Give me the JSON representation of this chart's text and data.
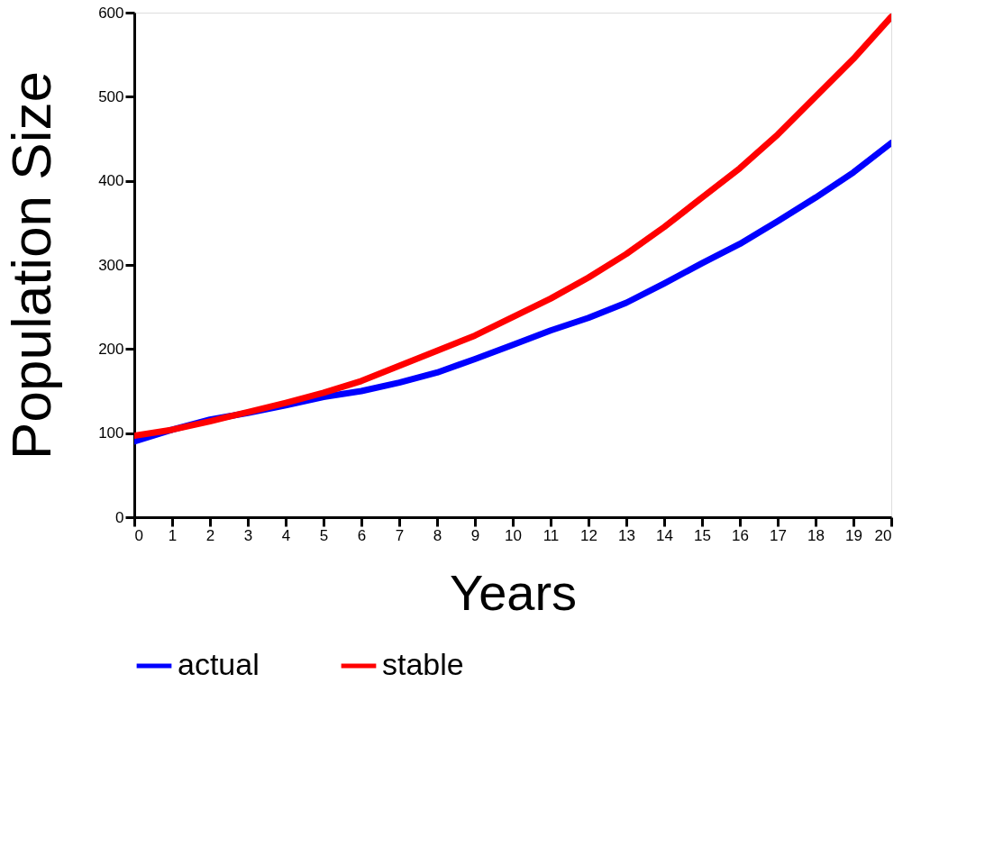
{
  "chart_data": {
    "type": "line",
    "xlabel": "Years",
    "ylabel": "Population Size",
    "x": [
      0,
      1,
      2,
      3,
      4,
      5,
      6,
      7,
      8,
      9,
      10,
      11,
      12,
      13,
      14,
      15,
      16,
      17,
      18,
      19,
      20
    ],
    "series": [
      {
        "name": "actual",
        "color": "#0000ff",
        "values": [
          90,
          104,
          116,
          124,
          133,
          143,
          150,
          160,
          172,
          188,
          205,
          222,
          237,
          255,
          278,
          302,
          325,
          352,
          380,
          410,
          445
        ]
      },
      {
        "name": "stable",
        "color": "#ff0000",
        "values": [
          97,
          104,
          114,
          125,
          136,
          148,
          162,
          180,
          198,
          216,
          238,
          260,
          285,
          313,
          345,
          380,
          415,
          455,
          500,
          545,
          595
        ]
      }
    ],
    "xlim": [
      0,
      20
    ],
    "xticks": [
      0,
      1,
      2,
      3,
      4,
      5,
      6,
      7,
      8,
      9,
      10,
      11,
      12,
      13,
      14,
      15,
      16,
      17,
      18,
      19,
      20
    ],
    "ylim": [
      0,
      600
    ],
    "yticks": [
      0,
      100,
      200,
      300,
      400,
      500,
      600
    ],
    "grid": false,
    "legend": "bottom",
    "marker": "none",
    "line_style": "solid"
  }
}
